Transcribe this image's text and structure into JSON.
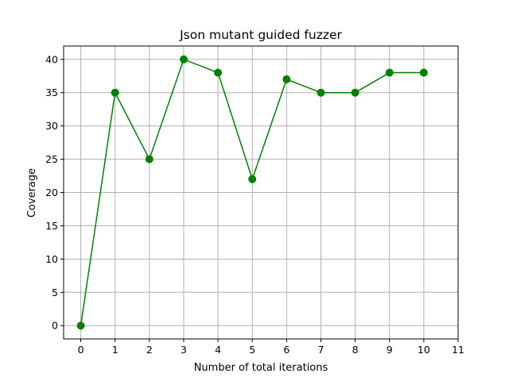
{
  "chart_data": {
    "type": "line",
    "title": "Json mutant guided fuzzer",
    "xlabel": "Number of total iterations",
    "ylabel": "Coverage",
    "x": [
      0,
      1,
      2,
      3,
      4,
      5,
      6,
      7,
      8,
      9,
      10
    ],
    "series": [
      {
        "values": [
          0,
          35,
          25,
          40,
          38,
          22,
          37,
          35,
          35,
          38,
          38
        ],
        "color": "#008000",
        "marker": "circle"
      }
    ],
    "xlim": [
      -0.5,
      11
    ],
    "ylim": [
      -2,
      42
    ],
    "xticks": [
      0,
      1,
      2,
      3,
      4,
      5,
      6,
      7,
      8,
      9,
      10,
      11
    ],
    "yticks": [
      0,
      5,
      10,
      15,
      20,
      25,
      30,
      35,
      40
    ],
    "grid": true,
    "grid_color": "#b0b0b0"
  }
}
